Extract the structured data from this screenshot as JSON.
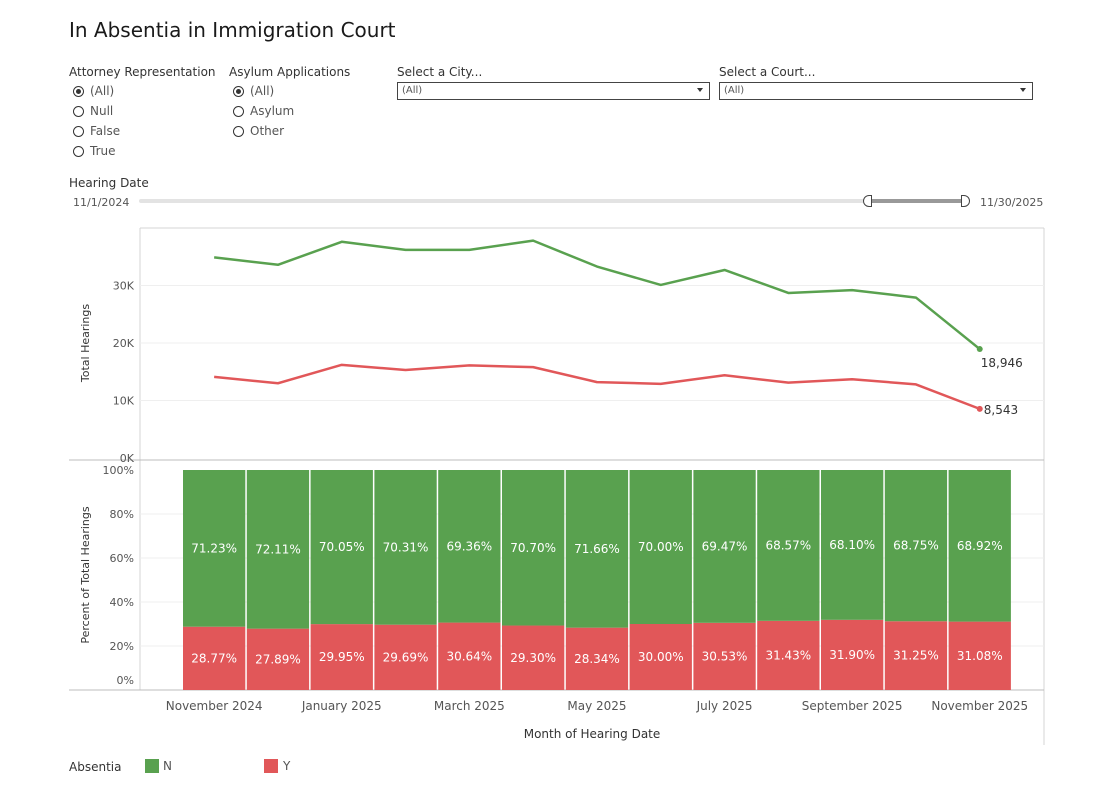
{
  "title": "In Absentia in Immigration Court",
  "filters": {
    "attorney": {
      "label": "Attorney Representation",
      "options": [
        "(All)",
        "Null",
        "False",
        "True"
      ],
      "selected": 0
    },
    "asylum": {
      "label": "Asylum Applications",
      "options": [
        "(All)",
        "Asylum",
        "Other"
      ],
      "selected": 0
    },
    "city": {
      "label": "Select a City...",
      "value": "(All)"
    },
    "court": {
      "label": "Select a Court...",
      "value": "(All)"
    },
    "hearing_date": {
      "label": "Hearing Date",
      "start": "11/1/2024",
      "end": "11/30/2025"
    }
  },
  "colors": {
    "N": "#59A14F",
    "Y": "#E15759"
  },
  "chart_data": [
    {
      "type": "line",
      "ylabel": "Total Hearings",
      "ylim": [
        0,
        40000
      ],
      "yticks": [
        "0K",
        "10K",
        "20K",
        "30K"
      ],
      "x": [
        "Nov 2024",
        "Dec 2024",
        "Jan 2025",
        "Feb 2025",
        "Mar 2025",
        "Apr 2025",
        "May 2025",
        "Jun 2025",
        "Jul 2025",
        "Aug 2025",
        "Sep 2025",
        "Oct 2025",
        "Nov 2025"
      ],
      "series": [
        {
          "name": "N",
          "values": [
            34900,
            33600,
            37600,
            36200,
            36200,
            37800,
            33300,
            30100,
            32700,
            28700,
            29200,
            27900,
            18946
          ]
        },
        {
          "name": "Y",
          "values": [
            14100,
            13000,
            16200,
            15300,
            16100,
            15800,
            13200,
            12900,
            14400,
            13100,
            13700,
            12800,
            8543
          ]
        }
      ],
      "end_labels": [
        "18,946",
        "8,543"
      ]
    },
    {
      "type": "bar",
      "stacked": true,
      "ylabel": "Percent of Total Hearings",
      "xlabel": "Month of Hearing Date",
      "ylim": [
        0,
        100
      ],
      "yticks": [
        "0%",
        "20%",
        "40%",
        "60%",
        "80%",
        "100%"
      ],
      "x_tick_labels": [
        "November 2024",
        "January 2025",
        "March 2025",
        "May 2025",
        "July 2025",
        "September 2025",
        "November 2025"
      ],
      "series": [
        {
          "name": "N",
          "labels": [
            "71.23%",
            "72.11%",
            "70.05%",
            "70.31%",
            "69.36%",
            "70.70%",
            "71.66%",
            "70.00%",
            "69.47%",
            "68.57%",
            "68.10%",
            "68.75%",
            "68.92%"
          ],
          "values": [
            71.23,
            72.11,
            70.05,
            70.31,
            69.36,
            70.7,
            71.66,
            70.0,
            69.47,
            68.57,
            68.1,
            68.75,
            68.92
          ]
        },
        {
          "name": "Y",
          "labels": [
            "28.77%",
            "27.89%",
            "29.95%",
            "29.69%",
            "30.64%",
            "29.30%",
            "28.34%",
            "30.00%",
            "30.53%",
            "31.43%",
            "31.90%",
            "31.25%",
            "31.08%"
          ],
          "values": [
            28.77,
            27.89,
            29.95,
            29.69,
            30.64,
            29.3,
            28.34,
            30.0,
            30.53,
            31.43,
            31.9,
            31.25,
            31.08
          ]
        }
      ]
    }
  ],
  "legend": {
    "title": "Absentia",
    "items": [
      {
        "name": "N"
      },
      {
        "name": "Y"
      }
    ]
  }
}
